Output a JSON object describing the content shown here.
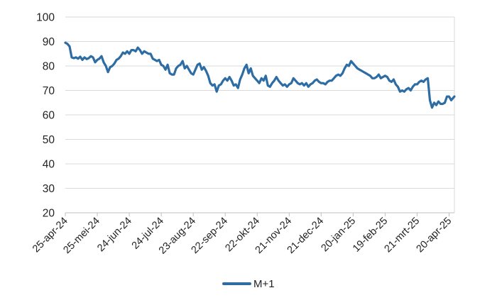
{
  "colors": {
    "series": "#2e6da4",
    "grid": "#d9d9d9",
    "axis": "#bfbfbf"
  },
  "chart_data": {
    "type": "line",
    "title": "",
    "xlabel": "",
    "ylabel": "",
    "ylim": [
      20,
      100
    ],
    "yticks": [
      20,
      30,
      40,
      50,
      60,
      70,
      80,
      90,
      100
    ],
    "grid": "horizontal",
    "legend": "bottom-center",
    "x_range": [
      "2024-04-25",
      "2025-04-25"
    ],
    "xtick_labels": [
      "25-apr-24",
      "25-mei-24",
      "24-jun-24",
      "24-jul-24",
      "23-aug-24",
      "22-sep-24",
      "22-okt-24",
      "21-nov-24",
      "21-dec-24",
      "20-jan-25",
      "19-feb-25",
      "21-mrt-25",
      "20-apr-25"
    ],
    "xtick_dates": [
      "2024-04-25",
      "2024-05-25",
      "2024-06-24",
      "2024-07-24",
      "2024-08-23",
      "2024-09-22",
      "2024-10-22",
      "2024-11-21",
      "2024-12-21",
      "2025-01-20",
      "2025-02-19",
      "2025-03-21",
      "2025-04-20"
    ],
    "series": [
      {
        "name": "M+1",
        "color": "#2e6da4",
        "points": [
          [
            "2024-04-25",
            89.5
          ],
          [
            "2024-04-27",
            89.0
          ],
          [
            "2024-04-29",
            88.0
          ],
          [
            "2024-05-01",
            83.5
          ],
          [
            "2024-05-03",
            83.2
          ],
          [
            "2024-05-05",
            83.5
          ],
          [
            "2024-05-07",
            83.0
          ],
          [
            "2024-05-09",
            83.8
          ],
          [
            "2024-05-11",
            82.5
          ],
          [
            "2024-05-13",
            83.5
          ],
          [
            "2024-05-15",
            82.8
          ],
          [
            "2024-05-17",
            83.2
          ],
          [
            "2024-05-19",
            84.0
          ],
          [
            "2024-05-21",
            83.5
          ],
          [
            "2024-05-23",
            81.5
          ],
          [
            "2024-05-25",
            82.5
          ],
          [
            "2024-05-27",
            83.0
          ],
          [
            "2024-05-29",
            84.0
          ],
          [
            "2024-05-31",
            81.5
          ],
          [
            "2024-06-02",
            80.0
          ],
          [
            "2024-06-04",
            77.5
          ],
          [
            "2024-06-06",
            79.5
          ],
          [
            "2024-06-08",
            80.0
          ],
          [
            "2024-06-10",
            81.0
          ],
          [
            "2024-06-12",
            82.5
          ],
          [
            "2024-06-14",
            83.0
          ],
          [
            "2024-06-16",
            84.0
          ],
          [
            "2024-06-18",
            85.5
          ],
          [
            "2024-06-20",
            85.0
          ],
          [
            "2024-06-22",
            86.0
          ],
          [
            "2024-06-24",
            85.0
          ],
          [
            "2024-06-26",
            86.5
          ],
          [
            "2024-06-28",
            86.5
          ],
          [
            "2024-06-30",
            86.0
          ],
          [
            "2024-07-02",
            87.5
          ],
          [
            "2024-07-04",
            86.5
          ],
          [
            "2024-07-06",
            85.0
          ],
          [
            "2024-07-08",
            86.0
          ],
          [
            "2024-07-10",
            85.5
          ],
          [
            "2024-07-12",
            85.0
          ],
          [
            "2024-07-14",
            85.0
          ],
          [
            "2024-07-16",
            83.0
          ],
          [
            "2024-07-18",
            82.5
          ],
          [
            "2024-07-20",
            82.0
          ],
          [
            "2024-07-22",
            82.5
          ],
          [
            "2024-07-24",
            80.5
          ],
          [
            "2024-07-26",
            80.0
          ],
          [
            "2024-07-28",
            78.5
          ],
          [
            "2024-07-30",
            80.5
          ],
          [
            "2024-08-01",
            77.0
          ],
          [
            "2024-08-03",
            76.5
          ],
          [
            "2024-08-05",
            76.5
          ],
          [
            "2024-08-07",
            79.0
          ],
          [
            "2024-08-09",
            80.0
          ],
          [
            "2024-08-11",
            80.5
          ],
          [
            "2024-08-13",
            82.0
          ],
          [
            "2024-08-15",
            79.0
          ],
          [
            "2024-08-17",
            80.0
          ],
          [
            "2024-08-19",
            78.5
          ],
          [
            "2024-08-21",
            77.0
          ],
          [
            "2024-08-23",
            76.5
          ],
          [
            "2024-08-25",
            78.5
          ],
          [
            "2024-08-27",
            80.5
          ],
          [
            "2024-08-29",
            81.0
          ],
          [
            "2024-08-31",
            78.5
          ],
          [
            "2024-09-02",
            79.5
          ],
          [
            "2024-09-04",
            78.0
          ],
          [
            "2024-09-06",
            76.0
          ],
          [
            "2024-09-08",
            73.0
          ],
          [
            "2024-09-10",
            72.0
          ],
          [
            "2024-09-12",
            72.5
          ],
          [
            "2024-09-14",
            69.5
          ],
          [
            "2024-09-16",
            72.0
          ],
          [
            "2024-09-18",
            72.5
          ],
          [
            "2024-09-20",
            74.0
          ],
          [
            "2024-09-22",
            75.0
          ],
          [
            "2024-09-24",
            74.0
          ],
          [
            "2024-09-26",
            75.5
          ],
          [
            "2024-09-28",
            74.0
          ],
          [
            "2024-09-30",
            72.0
          ],
          [
            "2024-10-02",
            72.5
          ],
          [
            "2024-10-04",
            71.0
          ],
          [
            "2024-10-06",
            74.5
          ],
          [
            "2024-10-08",
            76.5
          ],
          [
            "2024-10-10",
            79.0
          ],
          [
            "2024-10-12",
            80.5
          ],
          [
            "2024-10-14",
            77.0
          ],
          [
            "2024-10-16",
            79.0
          ],
          [
            "2024-10-18",
            76.0
          ],
          [
            "2024-10-20",
            75.0
          ],
          [
            "2024-10-22",
            74.0
          ],
          [
            "2024-10-24",
            73.0
          ],
          [
            "2024-10-26",
            75.0
          ],
          [
            "2024-10-28",
            74.0
          ],
          [
            "2024-10-30",
            76.0
          ],
          [
            "2024-11-01",
            72.0
          ],
          [
            "2024-11-03",
            71.5
          ],
          [
            "2024-11-05",
            73.0
          ],
          [
            "2024-11-07",
            74.0
          ],
          [
            "2024-11-09",
            75.5
          ],
          [
            "2024-11-11",
            74.0
          ],
          [
            "2024-11-13",
            73.0
          ],
          [
            "2024-11-15",
            72.0
          ],
          [
            "2024-11-17",
            72.5
          ],
          [
            "2024-11-19",
            71.5
          ],
          [
            "2024-11-21",
            72.5
          ],
          [
            "2024-11-23",
            73.0
          ],
          [
            "2024-11-25",
            75.0
          ],
          [
            "2024-11-27",
            74.0
          ],
          [
            "2024-11-29",
            73.0
          ],
          [
            "2024-12-01",
            72.5
          ],
          [
            "2024-12-03",
            73.0
          ],
          [
            "2024-12-05",
            72.0
          ],
          [
            "2024-12-07",
            73.0
          ],
          [
            "2024-12-09",
            71.5
          ],
          [
            "2024-12-11",
            72.5
          ],
          [
            "2024-12-13",
            73.0
          ],
          [
            "2024-12-15",
            74.0
          ],
          [
            "2024-12-17",
            74.5
          ],
          [
            "2024-12-19",
            73.5
          ],
          [
            "2024-12-21",
            73.0
          ],
          [
            "2024-12-23",
            73.0
          ],
          [
            "2024-12-25",
            72.5
          ],
          [
            "2024-12-27",
            73.5
          ],
          [
            "2024-12-29",
            74.0
          ],
          [
            "2024-12-31",
            74.0
          ],
          [
            "2025-01-02",
            75.0
          ],
          [
            "2025-01-04",
            76.0
          ],
          [
            "2025-01-06",
            76.5
          ],
          [
            "2025-01-08",
            76.0
          ],
          [
            "2025-01-10",
            77.0
          ],
          [
            "2025-01-12",
            79.0
          ],
          [
            "2025-01-14",
            80.5
          ],
          [
            "2025-01-16",
            80.0
          ],
          [
            "2025-01-18",
            82.0
          ],
          [
            "2025-01-20",
            81.0
          ],
          [
            "2025-01-22",
            80.0
          ],
          [
            "2025-01-24",
            79.0
          ],
          [
            "2025-01-26",
            78.5
          ],
          [
            "2025-01-28",
            78.0
          ],
          [
            "2025-01-30",
            77.5
          ],
          [
            "2025-02-01",
            77.0
          ],
          [
            "2025-02-03",
            76.5
          ],
          [
            "2025-02-05",
            76.0
          ],
          [
            "2025-02-07",
            75.0
          ],
          [
            "2025-02-09",
            75.0
          ],
          [
            "2025-02-11",
            75.5
          ],
          [
            "2025-02-13",
            76.5
          ],
          [
            "2025-02-15",
            75.0
          ],
          [
            "2025-02-17",
            75.5
          ],
          [
            "2025-02-19",
            76.0
          ],
          [
            "2025-02-21",
            75.5
          ],
          [
            "2025-02-23",
            74.0
          ],
          [
            "2025-02-25",
            73.5
          ],
          [
            "2025-02-27",
            74.5
          ],
          [
            "2025-03-01",
            72.5
          ],
          [
            "2025-03-03",
            71.5
          ],
          [
            "2025-03-05",
            69.5
          ],
          [
            "2025-03-07",
            70.0
          ],
          [
            "2025-03-09",
            69.5
          ],
          [
            "2025-03-11",
            70.5
          ],
          [
            "2025-03-13",
            71.0
          ],
          [
            "2025-03-15",
            70.0
          ],
          [
            "2025-03-17",
            71.5
          ],
          [
            "2025-03-19",
            72.5
          ],
          [
            "2025-03-21",
            72.5
          ],
          [
            "2025-03-23",
            73.5
          ],
          [
            "2025-03-25",
            74.0
          ],
          [
            "2025-03-27",
            73.5
          ],
          [
            "2025-03-29",
            74.5
          ],
          [
            "2025-03-31",
            75.0
          ],
          [
            "2025-04-02",
            66.0
          ],
          [
            "2025-04-04",
            63.0
          ],
          [
            "2025-04-06",
            65.0
          ],
          [
            "2025-04-08",
            64.0
          ],
          [
            "2025-04-10",
            65.5
          ],
          [
            "2025-04-12",
            64.5
          ],
          [
            "2025-04-14",
            64.5
          ],
          [
            "2025-04-16",
            65.0
          ],
          [
            "2025-04-18",
            67.5
          ],
          [
            "2025-04-20",
            67.5
          ],
          [
            "2025-04-22",
            66.0
          ],
          [
            "2025-04-25",
            67.5
          ]
        ]
      }
    ]
  }
}
